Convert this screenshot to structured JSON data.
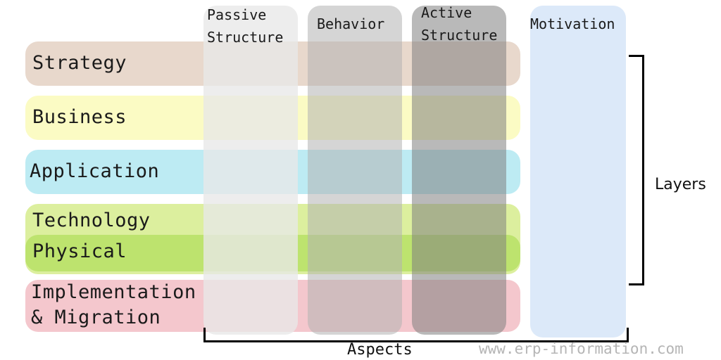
{
  "layers": {
    "strategy": {
      "label": "Strategy",
      "color": "#e8d8cc"
    },
    "business": {
      "label": "Business",
      "color": "#fbfbc4"
    },
    "application": {
      "label": "Application",
      "color": "#bdebf3"
    },
    "technology": {
      "label": "Technology",
      "color": "#dcef9e"
    },
    "physical": {
      "label": "Physical",
      "color": "#bde36e"
    },
    "implementation": {
      "label_line1": "Implementation",
      "label_line2": "& Migration",
      "color": "#f4c7cd"
    }
  },
  "aspects": {
    "passive": {
      "label_line1": "Passive",
      "label_line2": "Structure",
      "color": "rgba(232,232,232,0.78)"
    },
    "behavior": {
      "label": "Behavior",
      "color": "rgba(178,178,178,0.55)"
    },
    "active": {
      "label_line1": "Active",
      "label_line2": "Structure",
      "color": "rgba(128,128,128,0.55)"
    },
    "motivation": {
      "label": "Motivation",
      "color": "#dce9f9"
    }
  },
  "brackets": {
    "layers_label": "Layers",
    "aspects_label": "Aspects"
  },
  "watermark": "www.erp-information.com"
}
